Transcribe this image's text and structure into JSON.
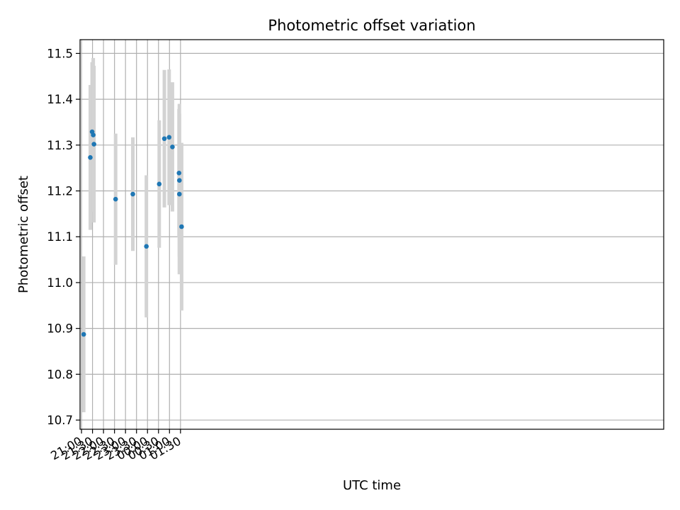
{
  "chart_data": {
    "type": "scatter",
    "title": "Photometric offset variation",
    "xlabel": "UTC time",
    "ylabel": "Photometric offset",
    "x_ticks": [
      "21:00",
      "21:30",
      "22:00",
      "22:30",
      "23:00",
      "23:30",
      "00:00",
      "00:30",
      "01:00",
      "01:30"
    ],
    "y_ticks": [
      "10.7",
      "10.8",
      "10.9",
      "11.0",
      "11.1",
      "11.2",
      "11.3",
      "11.4",
      "11.5"
    ],
    "ylim": [
      10.68,
      11.53
    ],
    "xlim": [
      "20:56",
      "23:28 +1"
    ],
    "grid": true,
    "colors": {
      "point": "#1f77b4",
      "errorbar": "#d3d3d3",
      "grid": "#b0b0b0"
    },
    "points": [
      {
        "time": "21:06",
        "y": 10.887,
        "err": 0.17
      },
      {
        "time": "21:24",
        "y": 11.273,
        "err": 0.158
      },
      {
        "time": "21:29",
        "y": 11.329,
        "err": 0.152
      },
      {
        "time": "21:32",
        "y": 11.322,
        "err": 0.168
      },
      {
        "time": "21:34",
        "y": 11.302,
        "err": 0.171
      },
      {
        "time": "22:33",
        "y": 11.182,
        "err": 0.143
      },
      {
        "time": "23:20",
        "y": 11.193,
        "err": 0.124
      },
      {
        "time": "23:57",
        "y": 11.079,
        "err": 0.155
      },
      {
        "time": "00:32",
        "y": 11.215,
        "err": 0.139
      },
      {
        "time": "00:46",
        "y": 11.314,
        "err": 0.15
      },
      {
        "time": "00:59",
        "y": 11.317,
        "err": 0.148
      },
      {
        "time": "01:08",
        "y": 11.296,
        "err": 0.141
      },
      {
        "time": "01:26",
        "y": 11.239,
        "err": 0.14
      },
      {
        "time": "01:27",
        "y": 11.223,
        "err": 0.167
      },
      {
        "time": "01:27",
        "y": 11.193,
        "err": 0.175
      },
      {
        "time": "01:33",
        "y": 11.122,
        "err": 0.183
      }
    ]
  }
}
